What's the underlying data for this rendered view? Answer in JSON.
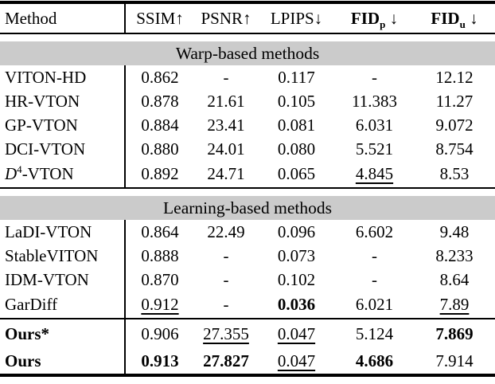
{
  "table": {
    "header": {
      "method_label": "Method",
      "metrics": [
        {
          "name": "SSIM",
          "sub": "",
          "arrow": "↑",
          "bold": false
        },
        {
          "name": "PSNR",
          "sub": "",
          "arrow": "↑",
          "bold": false
        },
        {
          "name": "LPIPS",
          "sub": "",
          "arrow": "↓",
          "bold": false
        },
        {
          "name": "FID",
          "sub": "p",
          "arrow": "↓",
          "bold": true
        },
        {
          "name": "FID",
          "sub": "u",
          "arrow": "↓",
          "bold": true
        }
      ]
    },
    "sections": [
      {
        "title": "Warp-based methods",
        "rows": [
          {
            "method": [
              {
                "t": "VITON-HD"
              }
            ],
            "cells": [
              {
                "t": "0.862"
              },
              {
                "t": "-"
              },
              {
                "t": "0.117"
              },
              {
                "t": "-"
              },
              {
                "t": "12.12"
              }
            ]
          },
          {
            "method": [
              {
                "t": "HR-VTON"
              }
            ],
            "cells": [
              {
                "t": "0.878"
              },
              {
                "t": "21.61"
              },
              {
                "t": "0.105"
              },
              {
                "t": "11.383"
              },
              {
                "t": "11.27"
              }
            ]
          },
          {
            "method": [
              {
                "t": "GP-VTON"
              }
            ],
            "cells": [
              {
                "t": "0.884"
              },
              {
                "t": "23.41"
              },
              {
                "t": "0.081"
              },
              {
                "t": "6.031"
              },
              {
                "t": "9.072"
              }
            ]
          },
          {
            "method": [
              {
                "t": "DCI-VTON"
              }
            ],
            "cells": [
              {
                "t": "0.880"
              },
              {
                "t": "24.01"
              },
              {
                "t": "0.080"
              },
              {
                "t": "5.521"
              },
              {
                "t": "8.754"
              }
            ]
          },
          {
            "method": [
              {
                "t": "D",
                "italic": true
              },
              {
                "t": "4",
                "sup": true
              },
              {
                "t": "-VTON"
              }
            ],
            "tall": true,
            "cells": [
              {
                "t": "0.892"
              },
              {
                "t": "24.71"
              },
              {
                "t": "0.065"
              },
              {
                "t": "4.845",
                "underline": true
              },
              {
                "t": "8.53"
              }
            ]
          }
        ]
      },
      {
        "title": "Learning-based methods",
        "rows": [
          {
            "method": [
              {
                "t": "LaDI-VTON"
              }
            ],
            "cells": [
              {
                "t": "0.864"
              },
              {
                "t": "22.49"
              },
              {
                "t": "0.096"
              },
              {
                "t": "6.602"
              },
              {
                "t": "9.48"
              }
            ]
          },
          {
            "method": [
              {
                "t": "StableVITON"
              }
            ],
            "cells": [
              {
                "t": "0.888"
              },
              {
                "t": "-"
              },
              {
                "t": "0.073"
              },
              {
                "t": "-"
              },
              {
                "t": "8.233"
              }
            ]
          },
          {
            "method": [
              {
                "t": "IDM-VTON"
              }
            ],
            "cells": [
              {
                "t": "0.870"
              },
              {
                "t": "-"
              },
              {
                "t": "0.102"
              },
              {
                "t": "-"
              },
              {
                "t": "8.64"
              }
            ]
          },
          {
            "method": [
              {
                "t": "GarDiff"
              }
            ],
            "tall": true,
            "cells": [
              {
                "t": "0.912",
                "underline": true
              },
              {
                "t": "-"
              },
              {
                "t": "0.036",
                "bold": true
              },
              {
                "t": "6.021"
              },
              {
                "t": "7.89",
                "underline": true
              }
            ]
          }
        ]
      },
      {
        "title": null,
        "rows": [
          {
            "method": [
              {
                "t": "Ours*",
                "bold": true
              }
            ],
            "cells": [
              {
                "t": "0.906"
              },
              {
                "t": "27.355",
                "underline": true
              },
              {
                "t": "0.047",
                "underline": true
              },
              {
                "t": "5.124"
              },
              {
                "t": "7.869",
                "bold": true
              }
            ]
          },
          {
            "method": [
              {
                "t": "Ours",
                "bold": true
              }
            ],
            "cells": [
              {
                "t": "0.913",
                "bold": true
              },
              {
                "t": "27.827",
                "bold": true
              },
              {
                "t": "0.047",
                "underline": true
              },
              {
                "t": "4.686",
                "bold": true
              },
              {
                "t": "7.914"
              }
            ]
          }
        ]
      }
    ]
  }
}
